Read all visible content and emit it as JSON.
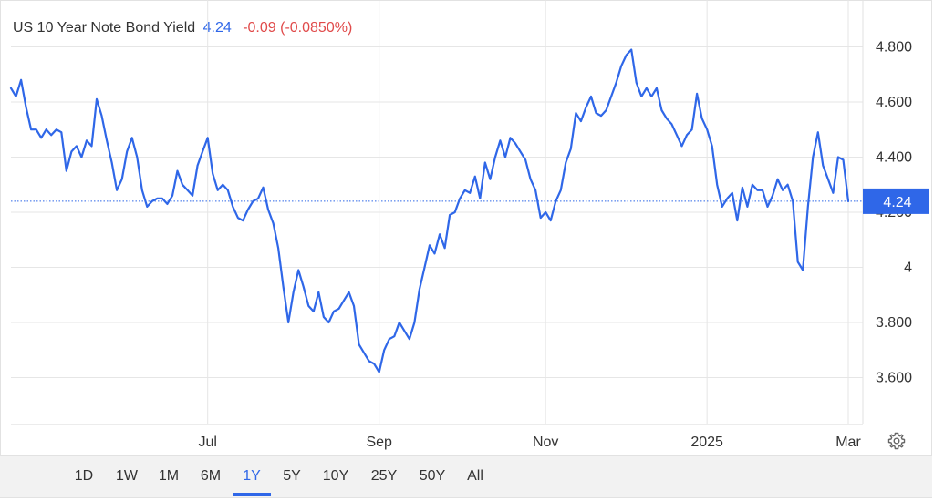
{
  "header": {
    "name": "US 10 Year Note Bond Yield",
    "price": "4.24",
    "change": "-0.09 (-0.0850%)"
  },
  "colors": {
    "line": "#2f67e8",
    "change": "#e04a4a",
    "grid": "#e6e6e6",
    "current_tag": "#2f67e8"
  },
  "range_selector": {
    "options": [
      "1D",
      "1W",
      "1M",
      "6M",
      "1Y",
      "5Y",
      "10Y",
      "25Y",
      "50Y",
      "All"
    ],
    "selected": "1Y"
  },
  "settings_icon": "gear-icon",
  "chart_data": {
    "type": "line",
    "title": "",
    "xlabel": "",
    "ylabel": "",
    "ylim": [
      3.43,
      4.97
    ],
    "y_ticks": [
      3.6,
      3.8,
      4.0,
      4.2,
      4.4,
      4.6,
      4.8
    ],
    "y_tick_labels": [
      "3.600",
      "3.800",
      "4",
      "4.200",
      "4.400",
      "4.600",
      "4.800"
    ],
    "x_ticks": [
      {
        "label": "Jul",
        "i": 39
      },
      {
        "label": "Sep",
        "i": 73
      },
      {
        "label": "Nov",
        "i": 106
      },
      {
        "label": "2025",
        "i": 138
      },
      {
        "label": "Mar",
        "i": 166
      }
    ],
    "current_value": 4.24,
    "current_label": "4.24",
    "grid": true,
    "series": [
      {
        "values": [
          4.65,
          4.62,
          4.68,
          4.58,
          4.5,
          4.5,
          4.47,
          4.5,
          4.48,
          4.5,
          4.49,
          4.35,
          4.42,
          4.44,
          4.4,
          4.46,
          4.44,
          4.61,
          4.55,
          4.46,
          4.38,
          4.28,
          4.32,
          4.42,
          4.47,
          4.4,
          4.28,
          4.22,
          4.24,
          4.25,
          4.25,
          4.23,
          4.26,
          4.35,
          4.3,
          4.28,
          4.26,
          4.37,
          4.42,
          4.47,
          4.34,
          4.28,
          4.3,
          4.28,
          4.22,
          4.18,
          4.17,
          4.21,
          4.24,
          4.25,
          4.29,
          4.21,
          4.16,
          4.07,
          3.93,
          3.8,
          3.91,
          3.99,
          3.93,
          3.86,
          3.84,
          3.91,
          3.82,
          3.8,
          3.84,
          3.85,
          3.88,
          3.91,
          3.86,
          3.72,
          3.69,
          3.66,
          3.65,
          3.62,
          3.7,
          3.74,
          3.75,
          3.8,
          3.77,
          3.74,
          3.8,
          3.92,
          4.0,
          4.08,
          4.05,
          4.12,
          4.07,
          4.19,
          4.2,
          4.25,
          4.28,
          4.27,
          4.33,
          4.25,
          4.38,
          4.32,
          4.4,
          4.46,
          4.4,
          4.47,
          4.45,
          4.42,
          4.39,
          4.32,
          4.28,
          4.18,
          4.2,
          4.17,
          4.24,
          4.28,
          4.38,
          4.43,
          4.56,
          4.53,
          4.58,
          4.62,
          4.56,
          4.55,
          4.57,
          4.62,
          4.67,
          4.73,
          4.77,
          4.79,
          4.67,
          4.62,
          4.65,
          4.62,
          4.65,
          4.57,
          4.54,
          4.52,
          4.48,
          4.44,
          4.48,
          4.5,
          4.63,
          4.54,
          4.5,
          4.44,
          4.3,
          4.22,
          4.25,
          4.27,
          4.17,
          4.29,
          4.22,
          4.3,
          4.28,
          4.28,
          4.22,
          4.26,
          4.32,
          4.28,
          4.3,
          4.24,
          4.02,
          3.99,
          4.22,
          4.4,
          4.49,
          4.37,
          4.32,
          4.27,
          4.4,
          4.39,
          4.24
        ]
      }
    ]
  }
}
